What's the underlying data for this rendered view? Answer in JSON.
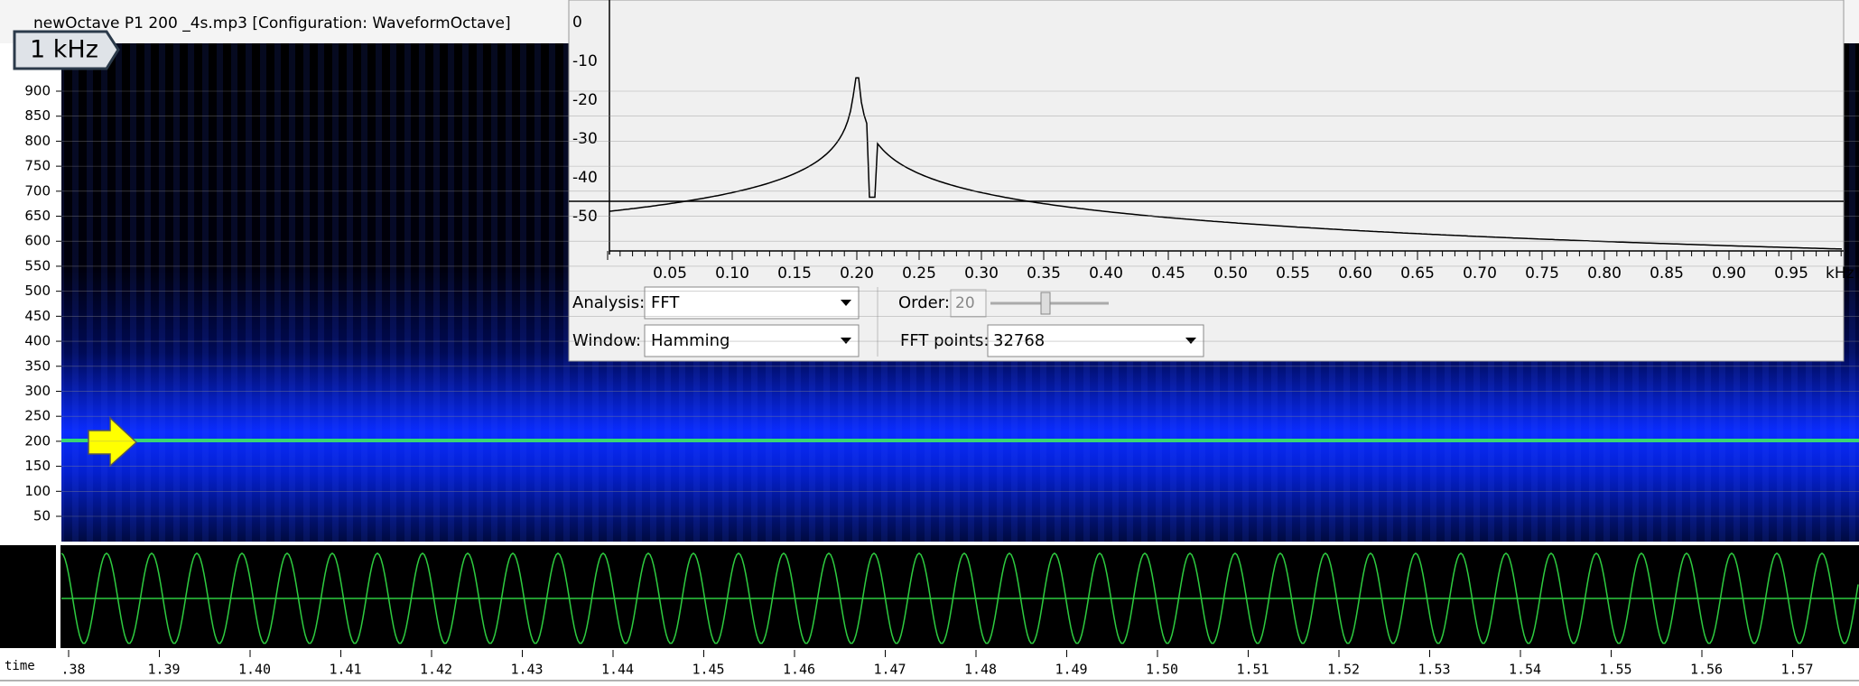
{
  "window": {
    "title": "newOctave P1 200 _4s.mp3 [Configuration: WaveformOctave]"
  },
  "badge": "1 kHz",
  "spectrogram": {
    "freq_labels": [
      "900",
      "850",
      "800",
      "750",
      "700",
      "650",
      "600",
      "550",
      "500",
      "450",
      "400",
      "350",
      "300",
      "250",
      "200",
      "150",
      "100",
      "50"
    ]
  },
  "time_axis": {
    "label": "time",
    "ticks": [
      ".38",
      "1.39",
      "1.40",
      "1.41",
      "1.42",
      "1.43",
      "1.44",
      "1.45",
      "1.46",
      "1.47",
      "1.48",
      "1.49",
      "1.50",
      "1.51",
      "1.52",
      "1.53",
      "1.54",
      "1.55",
      "1.56",
      "1.57"
    ]
  },
  "spectrum": {
    "db_labels": [
      "0",
      "-10",
      "-20",
      "-30",
      "-40",
      "-50"
    ],
    "freq_labels": [
      "0.05",
      "0.10",
      "0.15",
      "0.20",
      "0.25",
      "0.30",
      "0.35",
      "0.40",
      "0.45",
      "0.50",
      "0.55",
      "0.60",
      "0.65",
      "0.70",
      "0.75",
      "0.80",
      "0.85",
      "0.90",
      "0.95"
    ],
    "unit": "kHz"
  },
  "controls": {
    "analysis_label": "Analysis:",
    "analysis_value": "FFT",
    "order_label": "Order:",
    "order_value": "20",
    "window_label": "Window:",
    "window_value": "Hamming",
    "fft_points_label": "FFT points:",
    "fft_points_value": "32768"
  }
}
